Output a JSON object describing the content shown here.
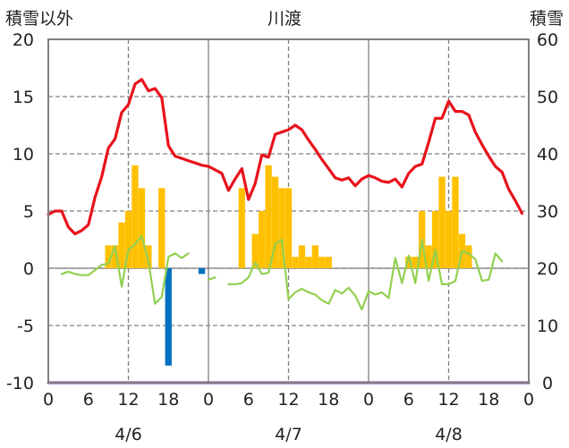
{
  "chart_data": {
    "type": "bar+line",
    "title": "川渡",
    "left_axis": {
      "label": "積雪以外",
      "ylim": [
        -10,
        20
      ],
      "ticks": [
        -10,
        -5,
        0,
        5,
        10,
        15,
        20
      ]
    },
    "right_axis": {
      "label": "積雪",
      "ylim": [
        0,
        60
      ],
      "ticks": [
        0,
        10,
        20,
        30,
        40,
        50,
        60
      ]
    },
    "x_axis": {
      "unit": "hours since 4/6 00:00",
      "xlim": [
        0,
        72
      ],
      "tick_labels": [
        "0",
        "6",
        "12",
        "18",
        "0",
        "6",
        "12",
        "18",
        "0",
        "6",
        "12",
        "18",
        "0"
      ],
      "tick_values": [
        0,
        6,
        12,
        18,
        24,
        30,
        36,
        42,
        48,
        54,
        60,
        66,
        72
      ],
      "day_labels": [
        "4/6",
        "4/7",
        "4/8"
      ]
    },
    "grid": {
      "vertical_dashed_hours": [
        12,
        36,
        60
      ],
      "day_separator_hours": [
        24,
        48
      ],
      "horizontal_dashed": true
    },
    "colors": {
      "temperature": "#e8121c",
      "sunshine": "#ffc000",
      "wind": "#92d050",
      "precip": "#0070c0",
      "snow_depth": "#7030a0",
      "grid": "#808080"
    },
    "series": [
      {
        "axis": "left",
        "type": "line",
        "x": [
          0,
          1,
          2,
          3,
          4,
          5,
          6,
          7,
          8,
          9,
          10,
          11,
          12,
          13,
          14,
          15,
          16,
          17,
          18,
          19,
          20,
          21,
          22,
          23,
          24,
          25,
          26,
          27,
          28,
          29,
          30,
          31,
          32,
          33,
          34,
          35,
          36,
          37,
          38,
          39,
          40,
          41,
          42,
          43,
          44,
          45,
          46,
          47,
          48,
          49,
          50,
          51,
          52,
          53,
          54,
          55,
          56,
          57,
          58,
          59,
          60,
          61,
          62,
          63,
          64,
          65,
          66,
          67,
          68,
          69,
          70,
          71
        ],
        "values": [
          4.7,
          5.0,
          5.0,
          3.6,
          3.0,
          3.3,
          3.8,
          6.2,
          8.0,
          10.5,
          11.3,
          13.6,
          14.3,
          16.1,
          16.5,
          15.5,
          15.7,
          14.9,
          10.7,
          9.8,
          9.6,
          9.4,
          9.2,
          9.0,
          8.9,
          8.6,
          8.3,
          6.8,
          7.8,
          8.7,
          6.0,
          7.4,
          9.9,
          9.7,
          11.7,
          11.9,
          12.1,
          12.5,
          12.1,
          11.2,
          10.4,
          9.5,
          8.7,
          7.9,
          7.7,
          7.9,
          7.2,
          7.8,
          8.1,
          7.9,
          7.6,
          7.5,
          7.8,
          7.1,
          8.3,
          8.9,
          9.1,
          11.0,
          13.1,
          13.1,
          14.6,
          13.7,
          13.7,
          13.4,
          11.9,
          10.8,
          9.8,
          8.9,
          8.4,
          6.9,
          5.9,
          4.8
        ]
      },
      {
        "axis": "left",
        "type": "line",
        "x": [
          2,
          3,
          4,
          5,
          6,
          8,
          9,
          10,
          11,
          12,
          13,
          14,
          15,
          16,
          17,
          18,
          19,
          20,
          21,
          22,
          24,
          25,
          26,
          27,
          28,
          29,
          30,
          31,
          32,
          33,
          34,
          35,
          36,
          37,
          38,
          39,
          40,
          41,
          42,
          43,
          44,
          45,
          46,
          47,
          48,
          49,
          50,
          51,
          52,
          53,
          54,
          55,
          56,
          57,
          58,
          59,
          60,
          61,
          62,
          63,
          64,
          65,
          66,
          67,
          68,
          69,
          70,
          71
        ],
        "values": [
          -0.5,
          -0.3,
          -0.5,
          -0.6,
          -0.6,
          0.3,
          0.4,
          1.9,
          -1.6,
          1.6,
          2.1,
          2.8,
          0.6,
          -3.1,
          -2.5,
          1.0,
          1.3,
          0.9,
          1.3,
          null,
          -1.0,
          -0.8,
          null,
          -1.4,
          -1.4,
          -1.3,
          -0.8,
          0.5,
          -0.5,
          -0.4,
          2.1,
          2.5,
          -2.7,
          -2.1,
          -1.8,
          -2.1,
          -2.3,
          -2.8,
          -3.1,
          -1.9,
          -2.2,
          -1.7,
          -2.4,
          -3.6,
          -2.0,
          -2.3,
          -2.1,
          -2.6,
          0.9,
          -1.3,
          1.1,
          -1.3,
          2.5,
          -1.1,
          1.6,
          -1.4,
          -1.4,
          -1.1,
          1.5,
          1.3,
          0.8,
          -1.1,
          -1.0,
          1.3,
          0.6,
          null,
          null,
          null
        ]
      },
      {
        "axis": "left",
        "type": "bar",
        "x": [
          9,
          10,
          11,
          12,
          13,
          14,
          15,
          17,
          29,
          31,
          32,
          33,
          34,
          35,
          36,
          37,
          38,
          39,
          40,
          41,
          42,
          54,
          55,
          56,
          57,
          58,
          59,
          60,
          61,
          62,
          63
        ],
        "values": [
          2,
          2,
          4,
          5,
          9,
          7,
          2,
          7,
          7,
          3,
          5,
          9,
          8,
          7,
          7,
          1,
          2,
          1,
          2,
          1,
          1,
          1,
          1,
          5,
          2,
          5,
          8,
          5,
          8,
          3,
          2
        ]
      },
      {
        "axis": "left",
        "type": "bar",
        "x": [
          18,
          23
        ],
        "values": [
          -8.5,
          -0.5
        ]
      },
      {
        "axis": "right",
        "type": "line",
        "x": [
          0,
          72
        ],
        "values": [
          0,
          0
        ]
      }
    ]
  }
}
